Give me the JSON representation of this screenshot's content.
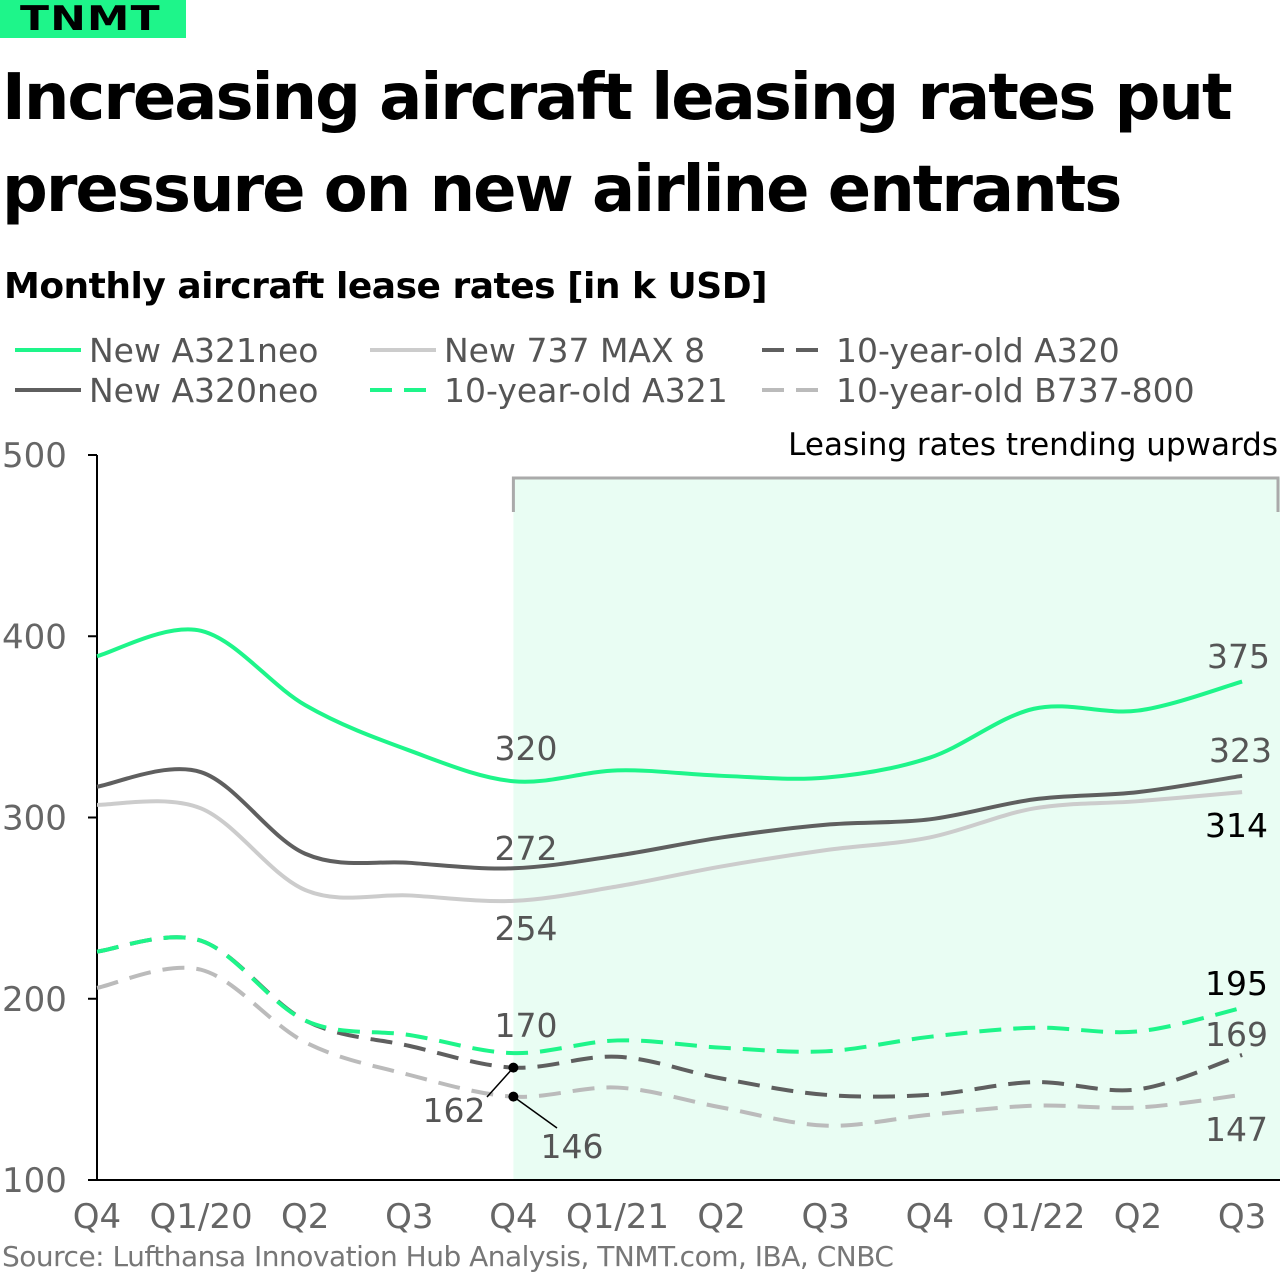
{
  "logo": "TNMT",
  "title": "Increasing aircraft leasing rates put pressure on new airline entrants",
  "source": "Source: Lufthansa Innovation Hub Analysis, TNMT.com, IBA, CNBC",
  "chart_data": {
    "type": "line",
    "title": "Monthly aircraft lease rates [in k USD]",
    "categories": [
      "Q4",
      "Q1/20",
      "Q2",
      "Q3",
      "Q4",
      "Q1/21",
      "Q2",
      "Q3",
      "Q4",
      "Q1/22",
      "Q2",
      "Q3"
    ],
    "ylim": [
      100,
      500
    ],
    "yticks": [
      100,
      200,
      300,
      400,
      500
    ],
    "grid": false,
    "legend_position": "top",
    "annotation": {
      "text": "Leasing rates trending upwards",
      "from": "Q4/20",
      "to": "Q3/22",
      "color": "#e9fdf3"
    },
    "series": [
      {
        "name": "New A321neo",
        "color": "#1ef58a",
        "dash": false,
        "values": [
          389,
          403,
          362,
          337,
          320,
          326,
          323,
          322,
          333,
          360,
          359,
          375
        ],
        "labels": {
          "4": "320",
          "11": "375"
        }
      },
      {
        "name": "New A320neo",
        "color": "#5f5f5f",
        "dash": false,
        "values": [
          317,
          325,
          280,
          275,
          272,
          279,
          289,
          296,
          299,
          310,
          314,
          323
        ],
        "labels": {
          "4": "272",
          "11": "323"
        }
      },
      {
        "name": "New  737 MAX 8",
        "color": "#cccccc",
        "dash": false,
        "values": [
          307,
          305,
          260,
          257,
          254,
          262,
          273,
          282,
          289,
          305,
          309,
          314
        ],
        "labels": {
          "4": "254",
          "11": "314"
        }
      },
      {
        "name": "10-year-old A321",
        "color": "#1ef58a",
        "dash": true,
        "values": [
          226,
          232,
          188,
          180,
          170,
          177,
          173,
          171,
          179,
          184,
          182,
          195
        ],
        "labels": {
          "4": "170",
          "11": "195"
        }
      },
      {
        "name": "10-year-old A320",
        "color": "#5f5f5f",
        "dash": true,
        "values": [
          226,
          232,
          188,
          174,
          162,
          168,
          156,
          147,
          147,
          154,
          150,
          169
        ],
        "labels": {
          "4": "162",
          "11": "169"
        }
      },
      {
        "name": "10-year-old B737-800",
        "color": "#bbbbbb",
        "dash": true,
        "values": [
          206,
          216,
          176,
          158,
          146,
          151,
          140,
          130,
          136,
          141,
          140,
          147
        ],
        "labels": {
          "4": "146",
          "11": "147"
        }
      }
    ]
  }
}
